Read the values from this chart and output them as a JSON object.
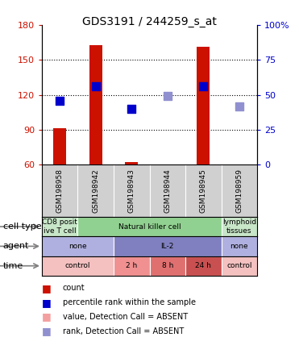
{
  "title": "GDS3191 / 244259_s_at",
  "samples": [
    "GSM198958",
    "GSM198942",
    "GSM198943",
    "GSM198944",
    "GSM198945",
    "GSM198959"
  ],
  "count_values": [
    91,
    163,
    62,
    60,
    161,
    60
  ],
  "count_absent": [
    false,
    false,
    false,
    true,
    false,
    true
  ],
  "percentile_values": [
    115,
    127,
    108,
    119,
    127,
    110
  ],
  "percentile_absent": [
    false,
    false,
    false,
    true,
    false,
    true
  ],
  "ylim": [
    60,
    180
  ],
  "yticks": [
    60,
    90,
    120,
    150,
    180
  ],
  "y2ticks": [
    0,
    25,
    50,
    75,
    100
  ],
  "y2tick_labels": [
    "0",
    "25",
    "50",
    "75",
    "100%"
  ],
  "cell_types": [
    {
      "label": "CD8 posit\nive T cell",
      "cols": [
        0,
        1
      ],
      "color": "#c8e6c8"
    },
    {
      "label": "Natural killer cell",
      "cols": [
        1,
        5
      ],
      "color": "#90d090"
    },
    {
      "label": "lymphoid\ntissues",
      "cols": [
        5,
        6
      ],
      "color": "#c8e6c8"
    }
  ],
  "agents": [
    {
      "label": "none",
      "cols": [
        0,
        2
      ],
      "color": "#b0b0e0"
    },
    {
      "label": "IL-2",
      "cols": [
        2,
        5
      ],
      "color": "#8080c0"
    },
    {
      "label": "none",
      "cols": [
        5,
        6
      ],
      "color": "#b0b0e0"
    }
  ],
  "times": [
    {
      "label": "control",
      "cols": [
        0,
        2
      ],
      "color": "#f4c0c0"
    },
    {
      "label": "2 h",
      "cols": [
        2,
        3
      ],
      "color": "#f09090"
    },
    {
      "label": "8 h",
      "cols": [
        3,
        4
      ],
      "color": "#e07070"
    },
    {
      "label": "24 h",
      "cols": [
        4,
        5
      ],
      "color": "#c85050"
    },
    {
      "label": "control",
      "cols": [
        5,
        6
      ],
      "color": "#f4c0c0"
    }
  ],
  "color_count_present": "#cc1100",
  "color_count_absent": "#f4a0a0",
  "color_rank_present": "#0000cc",
  "color_rank_absent": "#9090d0",
  "bar_width": 0.35,
  "dot_size": 50,
  "plot_bg": "#ffffff",
  "ylabel_color": "#cc1100",
  "y2label_color": "#0000cc",
  "sample_bg": "#d0d0d0",
  "legend_items": [
    {
      "color": "#cc1100",
      "label": "count"
    },
    {
      "color": "#0000cc",
      "label": "percentile rank within the sample"
    },
    {
      "color": "#f4a0a0",
      "label": "value, Detection Call = ABSENT"
    },
    {
      "color": "#9090d0",
      "label": "rank, Detection Call = ABSENT"
    }
  ]
}
